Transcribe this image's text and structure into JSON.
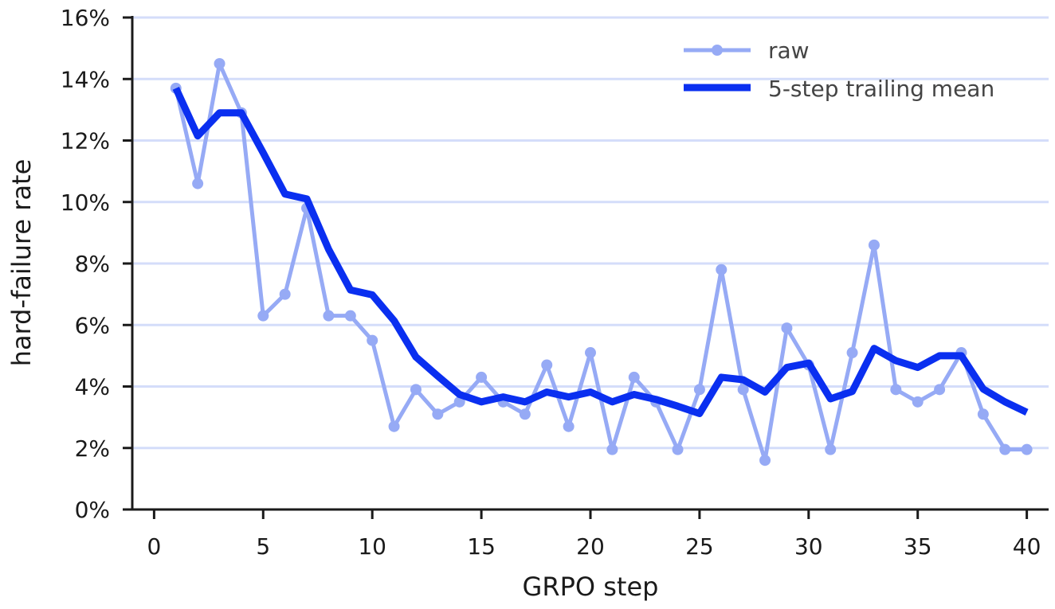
{
  "chart_data": {
    "type": "line",
    "xlabel": "GRPO step",
    "ylabel": "hard-failure rate",
    "xlim": [
      -1,
      41
    ],
    "ylim": [
      0,
      16
    ],
    "x_ticks": [
      0,
      5,
      10,
      15,
      20,
      25,
      30,
      35,
      40
    ],
    "y_ticks": [
      0,
      2,
      4,
      6,
      8,
      10,
      12,
      14,
      16
    ],
    "y_tick_labels": [
      "0%",
      "2%",
      "4%",
      "6%",
      "8%",
      "10%",
      "12%",
      "14%",
      "16%"
    ],
    "grid": "horizontal",
    "legend_position": "top-right",
    "x": [
      1,
      2,
      3,
      4,
      5,
      6,
      7,
      8,
      9,
      10,
      11,
      12,
      13,
      14,
      15,
      16,
      17,
      18,
      19,
      20,
      21,
      22,
      23,
      24,
      25,
      26,
      27,
      28,
      29,
      30,
      31,
      32,
      33,
      34,
      35,
      36,
      37,
      38,
      39,
      40
    ],
    "series": [
      {
        "name": "raw",
        "color": "#96aaf5",
        "marker": "circle",
        "values": [
          13.7,
          10.6,
          14.5,
          12.9,
          6.3,
          7.0,
          9.8,
          6.3,
          6.3,
          5.5,
          2.7,
          3.9,
          3.1,
          3.5,
          4.3,
          3.5,
          3.1,
          4.7,
          2.7,
          5.1,
          1.95,
          4.3,
          3.5,
          1.95,
          3.9,
          7.8,
          3.9,
          1.6,
          5.9,
          4.7,
          1.95,
          5.1,
          8.6,
          3.9,
          3.5,
          3.9,
          5.1,
          3.1,
          1.95,
          1.95
        ]
      },
      {
        "name": "5-step trailing mean",
        "color": "#0a2ff0",
        "marker": "none",
        "values": [
          13.7,
          12.15,
          12.9,
          12.9,
          11.6,
          10.26,
          10.1,
          8.46,
          7.14,
          6.98,
          6.14,
          4.96,
          4.34,
          3.74,
          3.5,
          3.66,
          3.5,
          3.82,
          3.66,
          3.82,
          3.5,
          3.74,
          3.58,
          3.36,
          3.12,
          4.3,
          4.22,
          3.82,
          4.62,
          4.76,
          3.6,
          3.84,
          5.24,
          4.84,
          4.62,
          5.0,
          5.0,
          3.92,
          3.5,
          3.16
        ]
      }
    ],
    "grid_color": "#d4ddfa",
    "axis_color": "#1a1a1a"
  }
}
